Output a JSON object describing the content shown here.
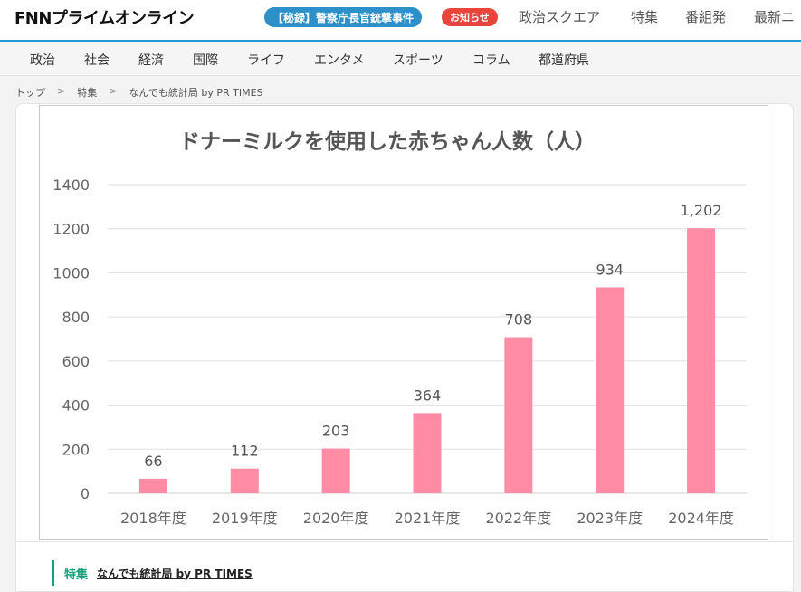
{
  "header": {
    "logo_text": "FNNプライムオンライン",
    "breaking_badge": "【秘録】警察庁長官銃撃事件",
    "notice_badge": "お知らせ",
    "nav": [
      "政治スクエア",
      "特集",
      "番組発",
      "最新ニ"
    ]
  },
  "category_nav": [
    "政治",
    "社会",
    "経済",
    "国際",
    "ライフ",
    "エンタメ",
    "スポーツ",
    "コラム",
    "都道府県"
  ],
  "breadcrumb": [
    "トップ",
    "特集",
    "なんでも統計局 by PR TIMES"
  ],
  "breadcrumb_separator": ">",
  "series": {
    "tag": "特集",
    "link": "なんでも統計局 by PR TIMES"
  },
  "colors": {
    "accent": "#1c9bd6",
    "bar": "#ff8ca4",
    "series_tag": "#14a27e"
  },
  "chart_data": {
    "type": "bar",
    "title": "ドナーミルクを使用した赤ちゃん人数（人）",
    "categories": [
      "2018年度",
      "2019年度",
      "2020年度",
      "2021年度",
      "2022年度",
      "2023年度",
      "2024年度"
    ],
    "values": [
      66,
      112,
      203,
      364,
      708,
      934,
      1202
    ],
    "value_labels": [
      "66",
      "112",
      "203",
      "364",
      "708",
      "934",
      "1,202"
    ],
    "yticks": [
      "0",
      "200",
      "400",
      "600",
      "800",
      "1000",
      "1200",
      "1400"
    ],
    "ylim": [
      0,
      1400
    ],
    "xlabel": "",
    "ylabel": "",
    "grid": true,
    "legend": "none"
  }
}
